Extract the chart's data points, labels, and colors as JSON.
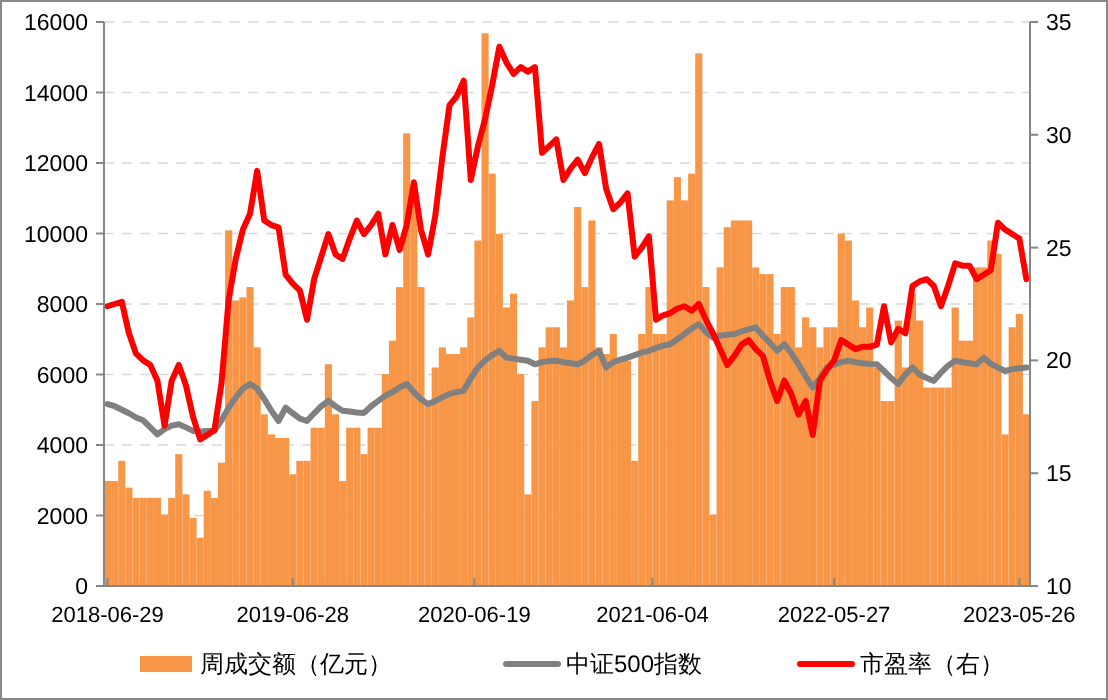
{
  "chart_data": {
    "type": "bar",
    "x": [
      "2018-06-29",
      "2018-07-13",
      "2018-07-27",
      "2018-08-10",
      "2018-08-24",
      "2018-09-07",
      "2018-09-21",
      "2018-10-05",
      "2018-10-19",
      "2018-11-02",
      "2018-11-16",
      "2018-11-30",
      "2018-12-14",
      "2018-12-28",
      "2019-01-11",
      "2019-01-25",
      "2019-02-08",
      "2019-02-22",
      "2019-03-08",
      "2019-03-22",
      "2019-04-05",
      "2019-04-19",
      "2019-05-03",
      "2019-05-17",
      "2019-05-31",
      "2019-06-14",
      "2019-06-28",
      "2019-07-12",
      "2019-07-26",
      "2019-08-09",
      "2019-08-23",
      "2019-09-06",
      "2019-09-20",
      "2019-10-04",
      "2019-10-18",
      "2019-11-01",
      "2019-11-15",
      "2019-11-29",
      "2019-12-13",
      "2019-12-27",
      "2020-01-10",
      "2020-01-24",
      "2020-02-07",
      "2020-02-21",
      "2020-03-06",
      "2020-03-20",
      "2020-04-03",
      "2020-04-17",
      "2020-05-01",
      "2020-05-15",
      "2020-05-29",
      "2020-06-12",
      "2020-06-26",
      "2020-07-10",
      "2020-07-24",
      "2020-08-07",
      "2020-08-21",
      "2020-09-04",
      "2020-09-18",
      "2020-10-02",
      "2020-10-16",
      "2020-10-30",
      "2020-11-13",
      "2020-11-27",
      "2020-12-11",
      "2020-12-25",
      "2021-01-08",
      "2021-01-22",
      "2021-02-05",
      "2021-02-19",
      "2021-03-05",
      "2021-03-19",
      "2021-04-02",
      "2021-04-16",
      "2021-04-30",
      "2021-05-14",
      "2021-05-28",
      "2021-06-11",
      "2021-06-25",
      "2021-07-09",
      "2021-07-23",
      "2021-08-06",
      "2021-08-20",
      "2021-09-03",
      "2021-09-17",
      "2021-10-01",
      "2021-10-15",
      "2021-10-29",
      "2021-11-12",
      "2021-11-26",
      "2021-12-10",
      "2021-12-24",
      "2022-01-07",
      "2022-01-21",
      "2022-02-04",
      "2022-02-18",
      "2022-03-04",
      "2022-03-18",
      "2022-04-01",
      "2022-04-15",
      "2022-04-29",
      "2022-05-13",
      "2022-05-27",
      "2022-06-10",
      "2022-06-24",
      "2022-07-08",
      "2022-07-22",
      "2022-08-05",
      "2022-08-19",
      "2022-09-02",
      "2022-09-16",
      "2022-09-30",
      "2022-10-14",
      "2022-10-28",
      "2022-11-11",
      "2022-11-25",
      "2022-12-09",
      "2022-12-23",
      "2023-01-06",
      "2023-01-20",
      "2023-02-03",
      "2023-02-17",
      "2023-03-03",
      "2023-03-17",
      "2023-03-31",
      "2023-04-14",
      "2023-04-28",
      "2023-05-12",
      "2023-05-26",
      "2023-06-09"
    ],
    "series": [
      {
        "name": "周成交额（亿元）",
        "color": "#f79646",
        "values": [
          2980,
          2980,
          3550,
          2790,
          2500,
          2500,
          2500,
          2500,
          2030,
          2500,
          3740,
          2600,
          1930,
          1370,
          2700,
          2500,
          3500,
          10090,
          8100,
          8190,
          8480,
          6770,
          4870,
          4300,
          4200,
          4200,
          3170,
          3550,
          3550,
          4490,
          4490,
          6290,
          4870,
          2980,
          4490,
          4490,
          3740,
          4490,
          4490,
          6010,
          6960,
          8480,
          12840,
          10940,
          8480,
          5250,
          6200,
          6770,
          6580,
          6580,
          6770,
          7620,
          9800,
          15680,
          11700,
          9990,
          7900,
          8290,
          6010,
          2600,
          5250,
          6770,
          7340,
          7340,
          6770,
          8100,
          10750,
          8480,
          10370,
          6770,
          6580,
          7150,
          6390,
          6390,
          3550,
          7150,
          8480,
          7150,
          7150,
          10940,
          11600,
          10940,
          11700,
          15110,
          8480,
          2030,
          9040,
          10180,
          10370,
          10370,
          10370,
          9040,
          8850,
          8850,
          7150,
          8480,
          8480,
          6770,
          7620,
          7340,
          6770,
          7340,
          7340,
          10000,
          9800,
          8100,
          7340,
          7900,
          6200,
          5250,
          5250,
          7530,
          6200,
          8290,
          7530,
          5630,
          5630,
          5630,
          5630,
          7900,
          6960,
          6960,
          9040,
          9040,
          9800,
          9420,
          4300,
          7340,
          7720,
          4870
        ]
      },
      {
        "name": "中证500指数",
        "type": "line",
        "color": "#808080",
        "values": [
          5160,
          5100,
          5000,
          4900,
          4780,
          4700,
          4500,
          4300,
          4450,
          4550,
          4590,
          4500,
          4400,
          4380,
          4400,
          4400,
          4700,
          5060,
          5350,
          5600,
          5730,
          5600,
          5300,
          4970,
          4680,
          5060,
          4900,
          4750,
          4680,
          4900,
          5100,
          5250,
          5100,
          4970,
          4950,
          4920,
          4910,
          5100,
          5250,
          5400,
          5500,
          5630,
          5730,
          5500,
          5300,
          5160,
          5250,
          5350,
          5450,
          5500,
          5540,
          5900,
          6200,
          6400,
          6550,
          6670,
          6480,
          6450,
          6420,
          6390,
          6290,
          6350,
          6380,
          6390,
          6350,
          6320,
          6290,
          6400,
          6550,
          6670,
          6200,
          6350,
          6420,
          6480,
          6550,
          6620,
          6670,
          6750,
          6820,
          6860,
          7000,
          7150,
          7300,
          7430,
          7200,
          7050,
          7100,
          7130,
          7150,
          7220,
          7280,
          7340,
          7100,
          6900,
          6670,
          6860,
          6600,
          6290,
          5950,
          5630,
          5900,
          6200,
          6280,
          6350,
          6390,
          6350,
          6320,
          6300,
          6290,
          6100,
          5900,
          5730,
          6000,
          6200,
          6000,
          5900,
          5820,
          6050,
          6250,
          6390,
          6350,
          6320,
          6290,
          6480,
          6300,
          6200,
          6100,
          6150,
          6180,
          6200
        ]
      },
      {
        "name": "市盈率（右）",
        "type": "line",
        "axis": "y2",
        "color": "#ff0000",
        "values": [
          22.4,
          22.5,
          22.6,
          21.2,
          20.3,
          20.0,
          19.8,
          19.1,
          17.1,
          19.1,
          19.8,
          18.9,
          17.5,
          16.5,
          16.7,
          16.9,
          19.0,
          22.7,
          24.5,
          25.8,
          26.5,
          28.4,
          26.2,
          26.0,
          25.9,
          23.8,
          23.4,
          23.1,
          21.8,
          23.6,
          24.6,
          25.6,
          24.7,
          24.5,
          25.4,
          26.2,
          25.6,
          26.0,
          26.5,
          24.7,
          26.0,
          24.9,
          26.0,
          27.9,
          25.8,
          24.7,
          26.4,
          29.0,
          31.3,
          31.7,
          32.4,
          28.0,
          29.5,
          30.7,
          32.2,
          33.9,
          33.2,
          32.7,
          33.0,
          32.8,
          33.0,
          29.2,
          29.5,
          29.8,
          28.0,
          28.5,
          28.9,
          28.3,
          29.0,
          29.6,
          27.6,
          26.7,
          27.0,
          27.4,
          24.6,
          25.0,
          25.5,
          21.8,
          22.0,
          22.1,
          22.3,
          22.4,
          22.2,
          22.5,
          21.8,
          21.2,
          20.5,
          19.8,
          20.2,
          20.7,
          20.9,
          20.5,
          20.2,
          19.1,
          18.2,
          19.1,
          18.5,
          17.6,
          18.2,
          16.7,
          19.1,
          19.6,
          20.0,
          20.9,
          20.7,
          20.5,
          20.6,
          20.6,
          20.7,
          22.4,
          20.8,
          21.4,
          21.2,
          23.3,
          23.5,
          23.6,
          23.3,
          22.4,
          23.3,
          24.3,
          24.2,
          24.2,
          23.6,
          23.8,
          24.0,
          26.1,
          25.8,
          25.6,
          25.4,
          23.6
        ]
      }
    ],
    "xlim": [
      "2018-06-22",
      "2023-06-16"
    ],
    "xticks": [
      "2018-06-29",
      "2019-06-28",
      "2020-06-19",
      "2021-06-04",
      "2022-05-27",
      "2023-05-26"
    ],
    "ylim": [
      0,
      16000
    ],
    "yticks": [
      0,
      2000,
      4000,
      6000,
      8000,
      10000,
      12000,
      14000,
      16000
    ],
    "y2lim": [
      10,
      35
    ],
    "y2ticks": [
      10,
      15,
      20,
      25,
      30,
      35
    ],
    "grid": "y",
    "legend": "bottom"
  }
}
